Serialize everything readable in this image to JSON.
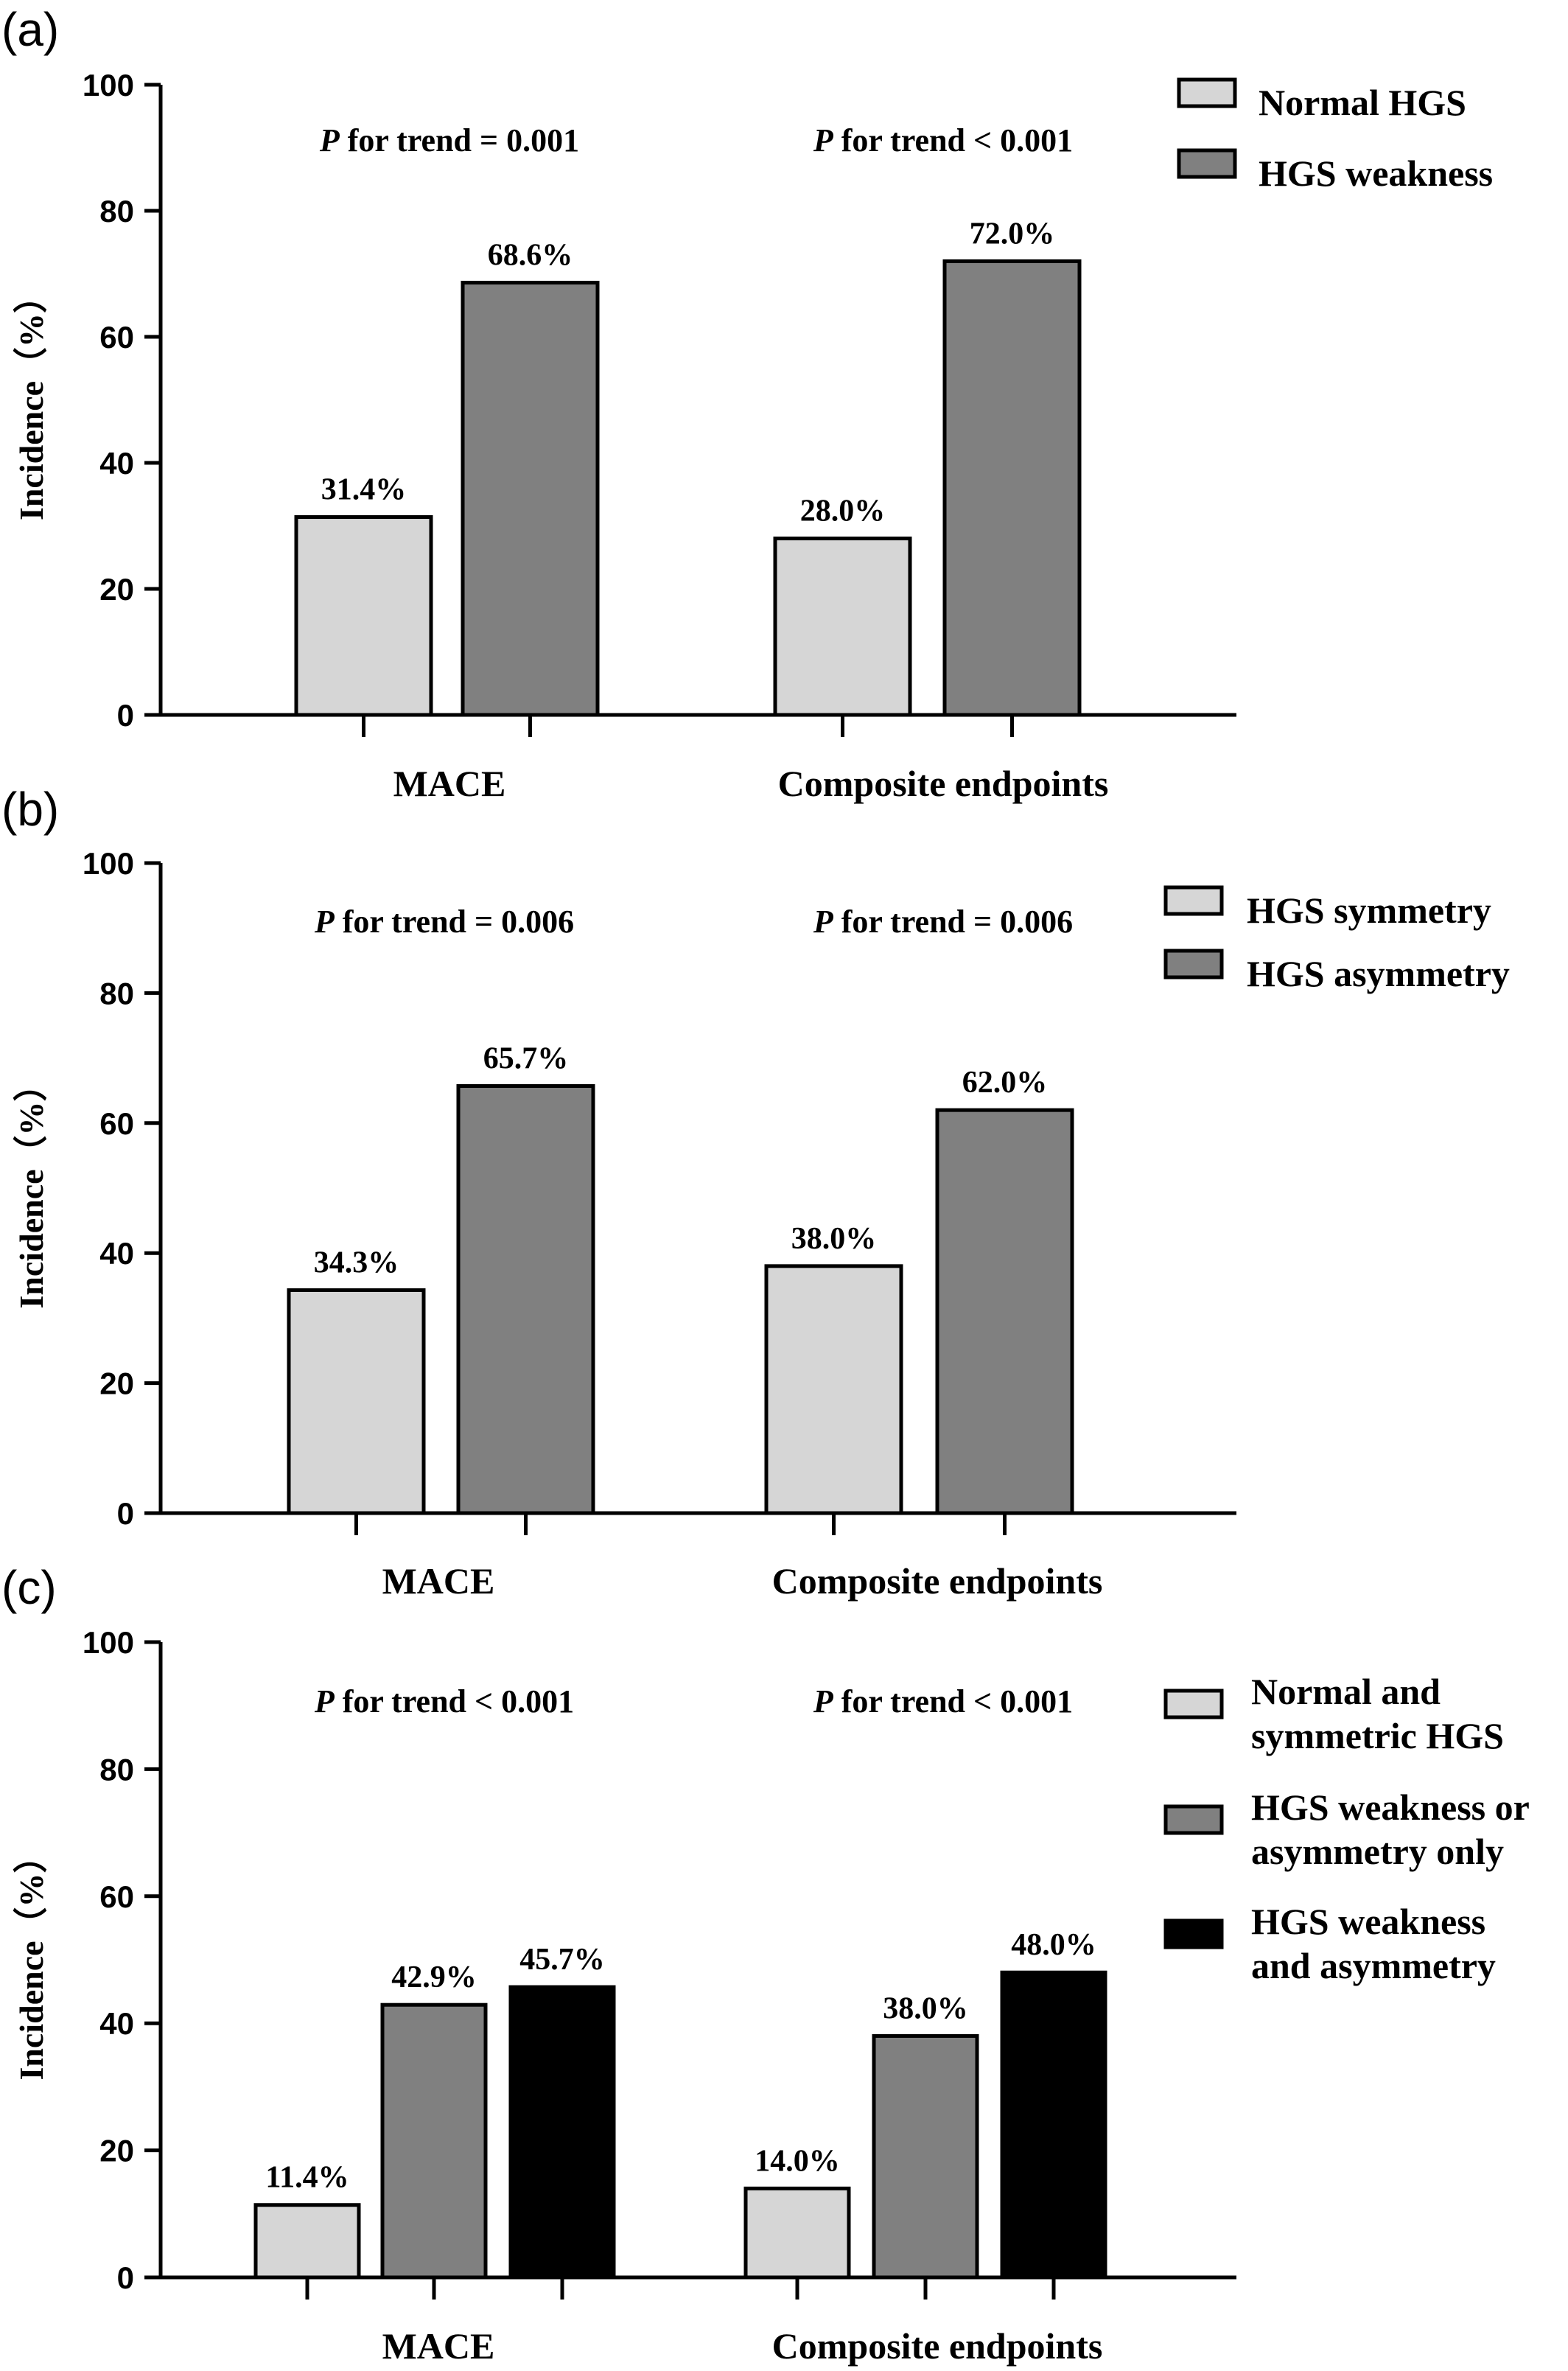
{
  "chart_data": [
    {
      "type": "bar",
      "panel_label": "(a)",
      "ylabel": "Incidence（%）",
      "ylim": [
        0,
        100
      ],
      "yticks": [
        "0",
        "20",
        "40",
        "60",
        "80",
        "100"
      ],
      "categories": [
        "MACE",
        "Composite endpoints"
      ],
      "p_values": [
        {
          "prefix": "P",
          "text": " for trend = 0.001"
        },
        {
          "prefix": "P",
          "text": " for trend < 0.001"
        }
      ],
      "series": [
        {
          "name": "Normal HGS",
          "color": "#d6d6d6",
          "values": [
            31.4,
            28.0
          ],
          "labels": [
            "31.4%",
            "28.0%"
          ],
          "legend_lines": [
            "Normal HGS"
          ]
        },
        {
          "name": "HGS weakness",
          "color": "#808080",
          "values": [
            68.6,
            72.0
          ],
          "labels": [
            "68.6%",
            "72.0%"
          ],
          "legend_lines": [
            "HGS weakness"
          ]
        }
      ]
    },
    {
      "type": "bar",
      "panel_label": "(b)",
      "ylabel": "Incidence（%）",
      "ylim": [
        0,
        100
      ],
      "yticks": [
        "0",
        "20",
        "40",
        "60",
        "80",
        "100"
      ],
      "categories": [
        "MACE",
        "Composite endpoints"
      ],
      "p_values": [
        {
          "prefix": "P",
          "text": " for trend = 0.006"
        },
        {
          "prefix": "P",
          "text": " for trend = 0.006"
        }
      ],
      "series": [
        {
          "name": "HGS symmetry",
          "color": "#d6d6d6",
          "values": [
            34.3,
            38.0
          ],
          "labels": [
            "34.3%",
            "38.0%"
          ],
          "legend_lines": [
            "HGS symmetry"
          ]
        },
        {
          "name": "HGS asymmetry",
          "color": "#808080",
          "values": [
            65.7,
            62.0
          ],
          "labels": [
            "65.7%",
            "62.0%"
          ],
          "legend_lines": [
            "HGS asymmetry"
          ]
        }
      ]
    },
    {
      "type": "bar",
      "panel_label": "(c)",
      "ylabel": "Incidence（%）",
      "ylim": [
        0,
        100
      ],
      "yticks": [
        "0",
        "20",
        "40",
        "60",
        "80",
        "100"
      ],
      "categories": [
        "MACE",
        "Composite endpoints"
      ],
      "p_values": [
        {
          "prefix": "P",
          "text": " for trend < 0.001"
        },
        {
          "prefix": "P",
          "text": " for trend < 0.001"
        }
      ],
      "series": [
        {
          "name": "Normal and symmetric HGS",
          "color": "#d6d6d6",
          "values": [
            11.4,
            14.0
          ],
          "labels": [
            "11.4%",
            "14.0%"
          ],
          "legend_lines": [
            "Normal and",
            "symmetric HGS"
          ]
        },
        {
          "name": "HGS weakness or asymmetry only",
          "color": "#808080",
          "values": [
            42.9,
            38.0
          ],
          "labels": [
            "42.9%",
            "38.0%"
          ],
          "legend_lines": [
            "HGS weakness or",
            "asymmetry only"
          ]
        },
        {
          "name": "HGS weakness and asymmetry",
          "color": "#000000",
          "values": [
            45.7,
            48.0
          ],
          "labels": [
            "45.7%",
            "48.0%"
          ],
          "legend_lines": [
            "HGS weakness",
            "and asymmetry"
          ]
        }
      ]
    }
  ]
}
